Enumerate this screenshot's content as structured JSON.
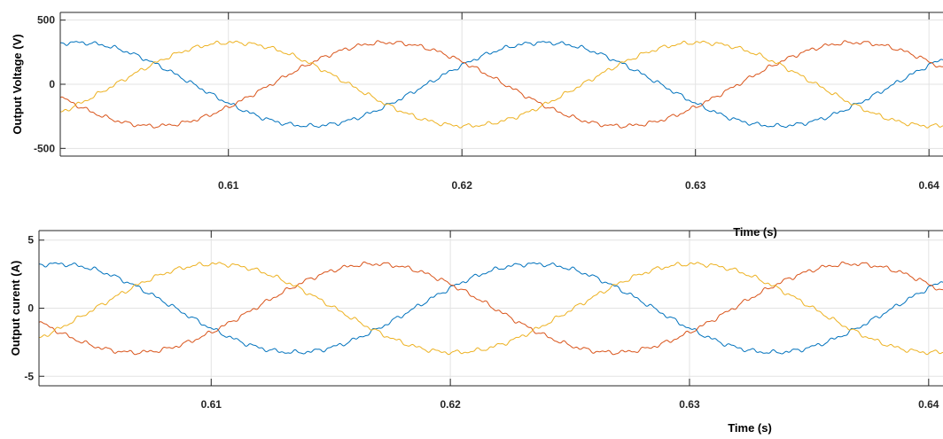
{
  "chart_data": [
    {
      "type": "line",
      "xlabel": "Time (s)",
      "ylabel": "Output Voltage (V)",
      "xlim": [
        0.6028,
        0.6406
      ],
      "ylim": [
        -560,
        560
      ],
      "xticks": [
        0.61,
        0.62,
        0.63,
        0.64
      ],
      "xtick_labels": [
        "0.61",
        "0.62",
        "0.63",
        "0.64"
      ],
      "yticks": [
        500,
        0,
        -500
      ],
      "ytick_labels": [
        "500",
        "0",
        "-500"
      ],
      "grid": true,
      "frequency_hz": 50,
      "amplitude": 325,
      "ripple": 16,
      "series": [
        {
          "color": "#0072BD",
          "phase_deg": 27
        },
        {
          "color": "#D95319",
          "phase_deg": 147
        },
        {
          "color": "#EDB120",
          "phase_deg": 267
        }
      ]
    },
    {
      "type": "line",
      "xlabel": "Time (s)",
      "ylabel": "Output curent (A)",
      "xlim": [
        0.6028,
        0.6406
      ],
      "ylim": [
        -5.7,
        5.7
      ],
      "xticks": [
        0.61,
        0.62,
        0.63,
        0.64
      ],
      "xtick_labels": [
        "0.61",
        "0.62",
        "0.63",
        "0.64"
      ],
      "yticks": [
        5,
        0,
        -5
      ],
      "ytick_labels": [
        "5",
        "0",
        "-5"
      ],
      "grid": true,
      "frequency_hz": 50,
      "amplitude": 3.25,
      "ripple": 0.16,
      "series": [
        {
          "color": "#0072BD",
          "phase_deg": 27
        },
        {
          "color": "#D95319",
          "phase_deg": 147
        },
        {
          "color": "#EDB120",
          "phase_deg": 267
        }
      ]
    }
  ]
}
